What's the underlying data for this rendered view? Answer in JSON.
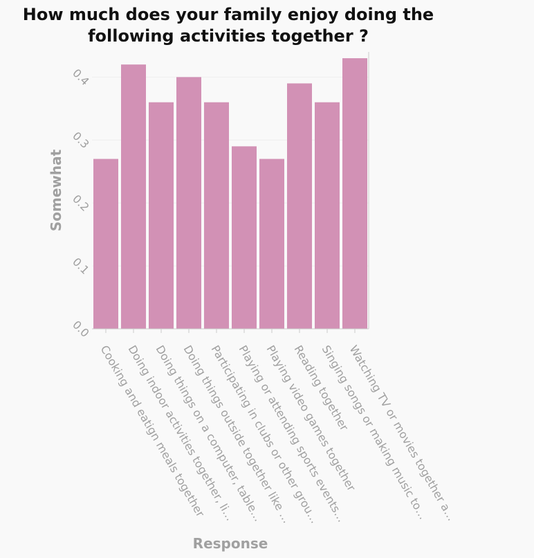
{
  "chart_data": {
    "type": "bar",
    "title": "How much does your family enjoy doing the following activities together ?",
    "title_lines": [
      "How much does your family enjoy doing the",
      "following activities together ?"
    ],
    "xlabel": "Response",
    "ylabel": "Somewhat",
    "ylim": [
      0,
      0.44
    ],
    "yticks": [
      0.0,
      0.1,
      0.2,
      0.3,
      0.4
    ],
    "ytick_labels": [
      "0.0",
      "0.1",
      "0.2",
      "0.3",
      "0.4"
    ],
    "categories": [
      "Cooking and eatign meals together",
      "Doing indoor activities together, li…",
      "Doing things on a computer, table…",
      "Doing things outside together like …",
      "Participating in clubs or other grou…",
      "Playing or attending sports events…",
      "Playing video games together",
      "Reading together",
      "Singing songs or making music to…",
      "Watching TV or movies together a…"
    ],
    "values": [
      0.27,
      0.42,
      0.36,
      0.4,
      0.36,
      0.29,
      0.27,
      0.39,
      0.36,
      0.43
    ],
    "grid": true,
    "colors": {
      "bar": "#d291b5",
      "background": "#f9f9f9",
      "grid": "#eeeeee",
      "axis": "#cccccc",
      "text": "#a0a0a0",
      "title": "#111111"
    }
  }
}
